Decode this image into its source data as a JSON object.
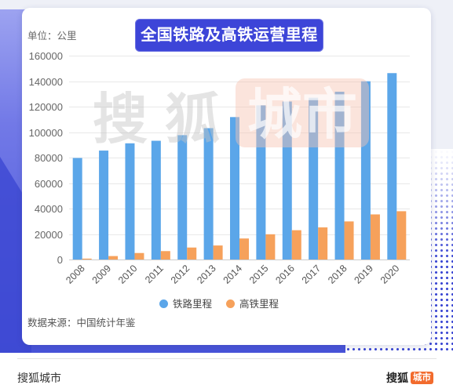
{
  "chart_data": {
    "type": "bar",
    "title": "全国铁路及高铁运营里程",
    "ylabel": "单位：公里",
    "categories": [
      "2008",
      "2009",
      "2010",
      "2011",
      "2012",
      "2013",
      "2014",
      "2015",
      "2016",
      "2017",
      "2018",
      "2019",
      "2020"
    ],
    "series": [
      {
        "name": "铁路里程",
        "color": "#5ba6e9",
        "values": [
          79700,
          85500,
          91200,
          93200,
          97600,
          103100,
          111800,
          121000,
          124000,
          127000,
          131700,
          139900,
          146300
        ]
      },
      {
        "name": "高铁里程",
        "color": "#f6a15b",
        "values": [
          700,
          2700,
          5100,
          6600,
          9400,
          11000,
          16500,
          19800,
          23000,
          25200,
          29900,
          35400,
          37900
        ]
      }
    ],
    "ylim": [
      0,
      160000
    ],
    "yticks": [
      0,
      20000,
      40000,
      60000,
      80000,
      100000,
      120000,
      140000,
      160000
    ],
    "grid": true,
    "legend_position": "bottom"
  },
  "source": "数据来源：中国统计年鉴",
  "watermark": {
    "brand_left": "搜狐",
    "brand_right": "城市"
  },
  "footer": {
    "brand_text": "搜狐城市",
    "logo_left": "搜狐",
    "logo_right": "城市"
  },
  "colors": {
    "title_banner": "#3d45d8",
    "logo_accent": "#f26b2d"
  }
}
